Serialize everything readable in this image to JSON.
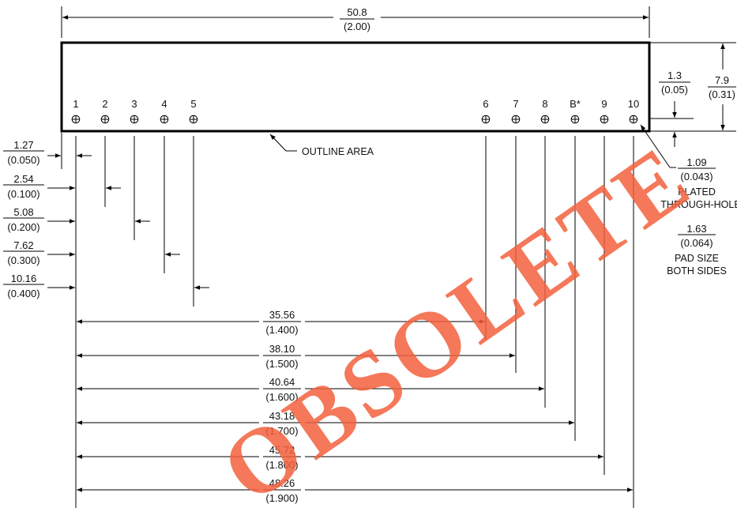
{
  "overall_width": {
    "mm": "50.8",
    "in": "(2.00)"
  },
  "height": {
    "mm": "7.9",
    "in": "(0.31)"
  },
  "pin_row_height": {
    "mm": "1.3",
    "in": "(0.05)"
  },
  "outline_label": "OUTLINE AREA",
  "hole_note": {
    "mm": "1.09",
    "in": "(0.043)",
    "line1": "PLATED",
    "line2": "THROUGH-HOLE"
  },
  "pad_note": {
    "mm": "1.63",
    "in": "(0.064)",
    "line1": "PAD SIZE",
    "line2": "BOTH SIDES"
  },
  "pins": [
    {
      "label": "1"
    },
    {
      "label": "2"
    },
    {
      "label": "3"
    },
    {
      "label": "4"
    },
    {
      "label": "5"
    },
    {
      "label": "6"
    },
    {
      "label": "7"
    },
    {
      "label": "8"
    },
    {
      "label": "B*"
    },
    {
      "label": "9"
    },
    {
      "label": "10"
    }
  ],
  "left_dims": [
    {
      "mm": "1.27",
      "in": "(0.050)"
    },
    {
      "mm": "2.54",
      "in": "(0.100)"
    },
    {
      "mm": "5.08",
      "in": "(0.200)"
    },
    {
      "mm": "7.62",
      "in": "(0.300)"
    },
    {
      "mm": "10.16",
      "in": "(0.400)"
    }
  ],
  "bottom_dims": [
    {
      "mm": "35.56",
      "in": "(1.400)"
    },
    {
      "mm": "38.10",
      "in": "(1.500)"
    },
    {
      "mm": "40.64",
      "in": "(1.600)"
    },
    {
      "mm": "43.18",
      "in": "(1.700)"
    },
    {
      "mm": "45.72",
      "in": "(1.800)"
    },
    {
      "mm": "48.26",
      "in": "(1.900)"
    }
  ],
  "watermark": "OBSOLETE"
}
